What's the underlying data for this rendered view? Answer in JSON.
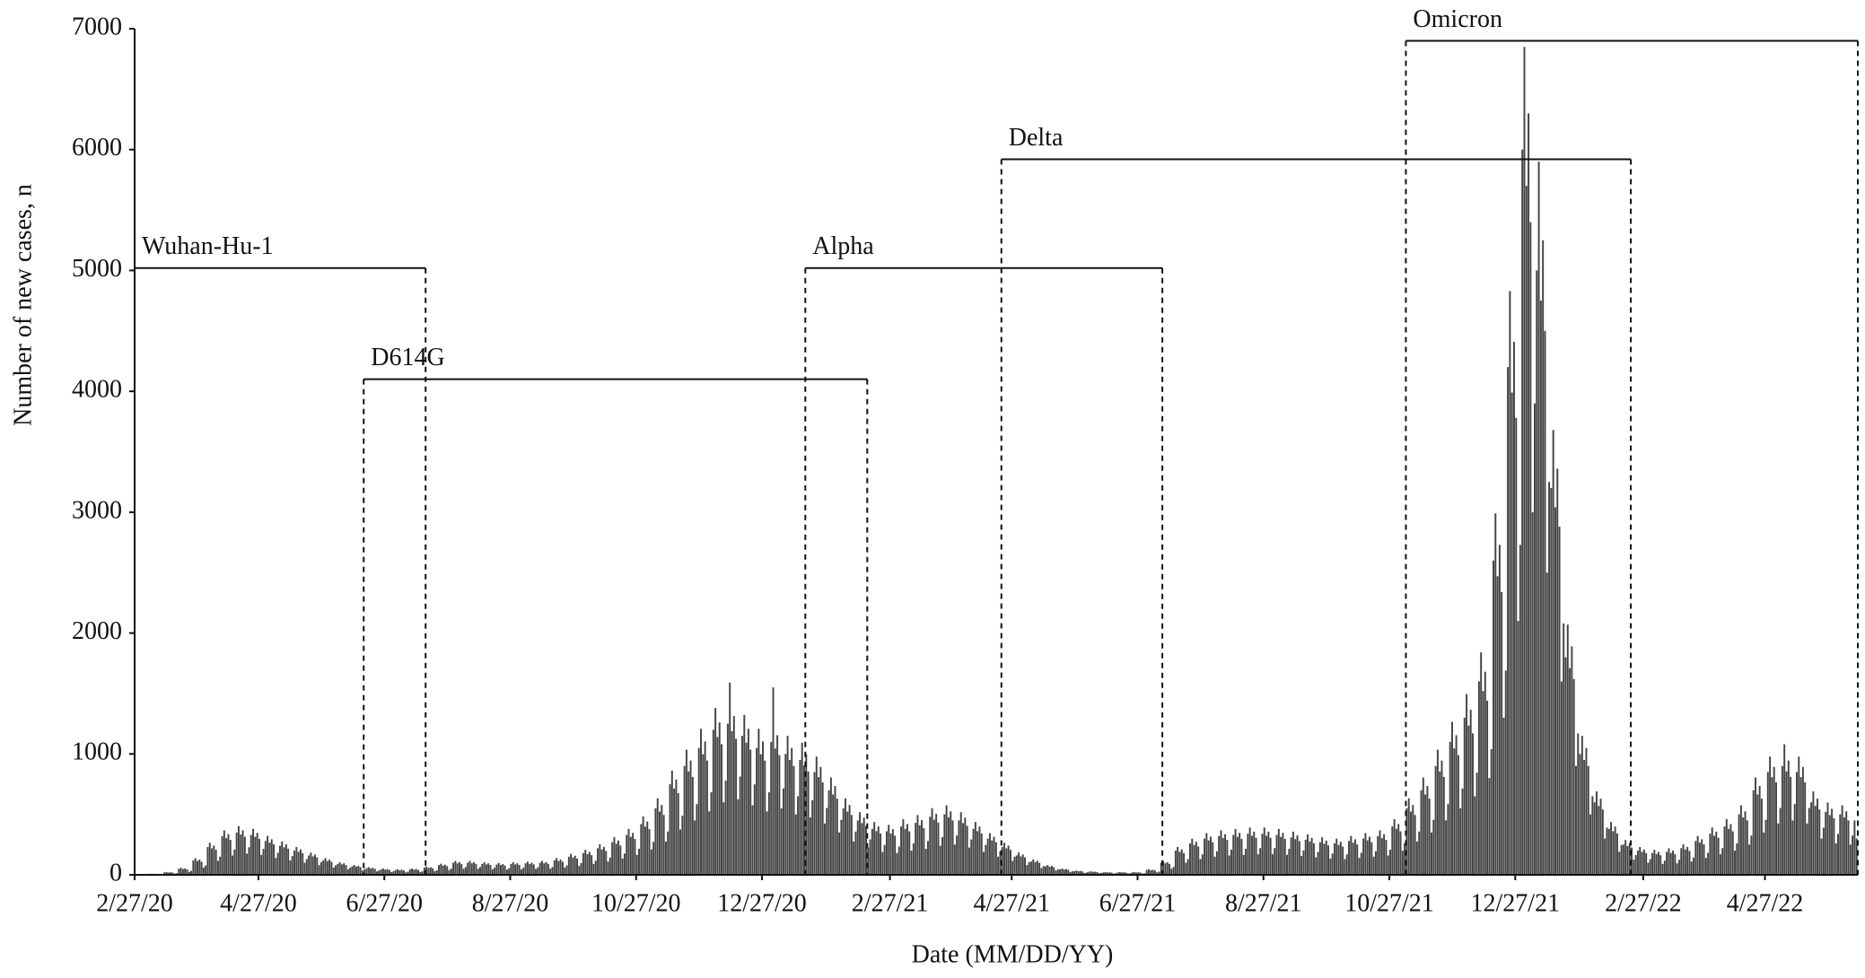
{
  "chart_data": {
    "type": "bar",
    "y_label": "Number of new cases, n",
    "x_label": "Date (MM/DD/YY)",
    "color": "#444444",
    "ylim": [
      0,
      7000
    ],
    "yticks": [
      0,
      1000,
      2000,
      3000,
      4000,
      5000,
      6000,
      7000
    ],
    "xlim": [
      0,
      835
    ],
    "xticks": [
      {
        "value": 0,
        "label": "2/27/20"
      },
      {
        "value": 60,
        "label": "4/27/20"
      },
      {
        "value": 121,
        "label": "6/27/20"
      },
      {
        "value": 182,
        "label": "8/27/20"
      },
      {
        "value": 243,
        "label": "10/27/20"
      },
      {
        "value": 304,
        "label": "12/27/20"
      },
      {
        "value": 366,
        "label": "2/27/21"
      },
      {
        "value": 425,
        "label": "4/27/21"
      },
      {
        "value": 486,
        "label": "6/27/21"
      },
      {
        "value": 547,
        "label": "8/27/21"
      },
      {
        "value": 608,
        "label": "10/27/21"
      },
      {
        "value": 669,
        "label": "12/27/21"
      },
      {
        "value": 731,
        "label": "2/27/22"
      },
      {
        "value": 790,
        "label": "4/27/22"
      }
    ],
    "annotations": [
      {
        "text": "Wuhan-Hu-1",
        "x_start": 0,
        "x_end": 141,
        "y": 5020
      },
      {
        "text": "D614G",
        "x_start": 111,
        "x_end": 355,
        "y": 4100
      },
      {
        "text": "Alpha",
        "x_start": 325,
        "x_end": 498,
        "y": 5020
      },
      {
        "text": "Delta",
        "x_start": 420,
        "x_end": 725,
        "y": 5920
      },
      {
        "text": "Omicron",
        "x_start": 616,
        "x_end": 835,
        "y": 6900
      }
    ],
    "values": [
      3,
      3,
      3,
      3,
      3,
      2,
      2,
      8,
      9,
      8,
      8,
      7,
      4,
      5,
      20,
      23,
      19,
      21,
      18,
      10,
      13,
      50,
      58,
      48,
      53,
      45,
      25,
      33,
      120,
      138,
      114,
      126,
      108,
      60,
      78,
      230,
      265,
      219,
      242,
      207,
      115,
      150,
      320,
      368,
      304,
      336,
      288,
      160,
      208,
      350,
      403,
      333,
      368,
      315,
      175,
      228,
      330,
      380,
      314,
      347,
      297,
      165,
      215,
      280,
      322,
      266,
      294,
      252,
      140,
      182,
      240,
      276,
      228,
      252,
      216,
      120,
      156,
      200,
      230,
      190,
      210,
      180,
      100,
      130,
      160,
      184,
      152,
      168,
      144,
      80,
      104,
      120,
      138,
      114,
      126,
      108,
      60,
      78,
      90,
      104,
      86,
      95,
      81,
      45,
      59,
      70,
      81,
      67,
      74,
      63,
      35,
      46,
      55,
      63,
      52,
      58,
      50,
      28,
      36,
      45,
      52,
      43,
      47,
      41,
      23,
      29,
      40,
      46,
      38,
      42,
      36,
      20,
      26,
      45,
      52,
      43,
      47,
      41,
      23,
      29,
      60,
      69,
      57,
      63,
      54,
      30,
      39,
      80,
      92,
      76,
      84,
      72,
      40,
      52,
      100,
      115,
      95,
      105,
      90,
      50,
      65,
      100,
      115,
      95,
      105,
      90,
      50,
      65,
      90,
      104,
      86,
      95,
      81,
      45,
      59,
      85,
      98,
      81,
      89,
      77,
      43,
      55,
      90,
      104,
      86,
      95,
      81,
      45,
      59,
      95,
      109,
      90,
      100,
      86,
      48,
      62,
      100,
      115,
      95,
      105,
      90,
      50,
      65,
      120,
      138,
      114,
      126,
      108,
      60,
      78,
      150,
      173,
      143,
      158,
      135,
      75,
      98,
      180,
      207,
      171,
      189,
      162,
      90,
      117,
      220,
      253,
      209,
      231,
      198,
      110,
      143,
      270,
      311,
      257,
      284,
      243,
      135,
      176,
      330,
      380,
      314,
      347,
      297,
      165,
      215,
      420,
      483,
      399,
      441,
      378,
      210,
      273,
      550,
      633,
      523,
      578,
      495,
      275,
      358,
      750,
      863,
      713,
      788,
      675,
      375,
      488,
      900,
      1035,
      855,
      945,
      810,
      450,
      585,
      1050,
      1208,
      998,
      1103,
      945,
      525,
      683,
      1200,
      1380,
      1140,
      1260,
      1080,
      600,
      780,
      1250,
      1590,
      1188,
      1313,
      1125,
      625,
      813,
      1150,
      1323,
      1093,
      1208,
      1035,
      575,
      748,
      1050,
      1208,
      998,
      1103,
      945,
      525,
      683,
      1100,
      1550,
      1045,
      1155,
      990,
      550,
      715,
      1000,
      1150,
      950,
      1050,
      900,
      500,
      650,
      950,
      1093,
      903,
      998,
      855,
      475,
      618,
      850,
      978,
      808,
      893,
      765,
      425,
      553,
      700,
      805,
      665,
      735,
      630,
      350,
      455,
      550,
      633,
      523,
      578,
      495,
      275,
      358,
      450,
      518,
      428,
      473,
      405,
      225,
      293,
      380,
      437,
      361,
      399,
      342,
      190,
      247,
      360,
      414,
      342,
      378,
      324,
      180,
      234,
      400,
      460,
      380,
      420,
      360,
      200,
      260,
      430,
      495,
      409,
      452,
      387,
      215,
      280,
      480,
      552,
      456,
      504,
      432,
      240,
      312,
      500,
      575,
      475,
      525,
      450,
      250,
      325,
      450,
      518,
      428,
      473,
      405,
      225,
      293,
      380,
      437,
      361,
      399,
      342,
      190,
      247,
      300,
      345,
      285,
      315,
      270,
      150,
      195,
      230,
      265,
      219,
      242,
      207,
      115,
      150,
      160,
      184,
      152,
      168,
      144,
      80,
      104,
      110,
      127,
      105,
      116,
      99,
      55,
      72,
      70,
      81,
      67,
      74,
      63,
      35,
      46,
      45,
      52,
      43,
      47,
      41,
      23,
      29,
      30,
      35,
      29,
      32,
      27,
      15,
      20,
      25,
      29,
      24,
      26,
      23,
      13,
      16,
      20,
      23,
      19,
      21,
      18,
      10,
      13,
      20,
      23,
      19,
      21,
      18,
      10,
      13,
      20,
      23,
      19,
      21,
      18,
      10,
      13,
      40,
      46,
      38,
      42,
      36,
      20,
      26,
      100,
      115,
      95,
      105,
      90,
      50,
      65,
      200,
      230,
      190,
      210,
      180,
      100,
      130,
      260,
      299,
      247,
      273,
      234,
      130,
      169,
      300,
      345,
      285,
      315,
      270,
      150,
      195,
      320,
      368,
      304,
      336,
      288,
      160,
      208,
      330,
      380,
      314,
      347,
      297,
      165,
      215,
      340,
      391,
      323,
      357,
      306,
      170,
      221,
      340,
      391,
      323,
      357,
      306,
      170,
      221,
      330,
      380,
      314,
      347,
      297,
      165,
      215,
      310,
      357,
      295,
      326,
      279,
      155,
      202,
      290,
      334,
      276,
      305,
      261,
      145,
      189,
      270,
      311,
      257,
      284,
      243,
      135,
      176,
      260,
      299,
      247,
      273,
      234,
      130,
      169,
      280,
      322,
      266,
      294,
      252,
      140,
      182,
      300,
      345,
      285,
      315,
      270,
      150,
      195,
      320,
      368,
      304,
      336,
      288,
      160,
      208,
      400,
      460,
      380,
      420,
      360,
      200,
      260,
      550,
      633,
      523,
      578,
      495,
      275,
      358,
      700,
      805,
      665,
      735,
      630,
      350,
      455,
      900,
      1035,
      855,
      945,
      810,
      450,
      585,
      1100,
      1265,
      1045,
      1155,
      990,
      550,
      715,
      1300,
      1495,
      1235,
      1365,
      1170,
      650,
      845,
      1600,
      1840,
      1520,
      1680,
      1440,
      800,
      1040,
      2600,
      2990,
      2470,
      2730,
      2340,
      1300,
      1690,
      4200,
      4830,
      3990,
      4410,
      3780,
      2100,
      2730,
      6000,
      6850,
      5700,
      6300,
      5400,
      3000,
      3900,
      5000,
      5900,
      4750,
      5250,
      4500,
      2500,
      3250,
      3200,
      3680,
      3040,
      3360,
      2880,
      1600,
      2080,
      1800,
      2070,
      1710,
      1890,
      1620,
      900,
      1170,
      1000,
      1150,
      950,
      1050,
      900,
      500,
      650,
      600,
      690,
      570,
      630,
      540,
      300,
      390,
      380,
      437,
      361,
      399,
      342,
      190,
      247,
      250,
      288,
      238,
      263,
      225,
      125,
      163,
      200,
      230,
      190,
      210,
      180,
      100,
      130,
      180,
      207,
      171,
      189,
      162,
      90,
      117,
      190,
      219,
      181,
      200,
      171,
      95,
      124,
      220,
      253,
      209,
      231,
      198,
      110,
      143,
      280,
      322,
      266,
      294,
      252,
      140,
      182,
      340,
      391,
      323,
      357,
      306,
      170,
      221,
      400,
      460,
      380,
      420,
      360,
      200,
      260,
      500,
      575,
      475,
      525,
      450,
      250,
      325,
      700,
      805,
      665,
      735,
      630,
      350,
      455,
      850,
      978,
      808,
      893,
      765,
      425,
      553,
      900,
      1080,
      855,
      945,
      810,
      450,
      585,
      850,
      978,
      808,
      893,
      765,
      425,
      553,
      600,
      690,
      570,
      630,
      540,
      300,
      390,
      520,
      598,
      494,
      546,
      468,
      260,
      338,
      500,
      575,
      475,
      525,
      450,
      250,
      325,
      450,
      300
    ]
  }
}
